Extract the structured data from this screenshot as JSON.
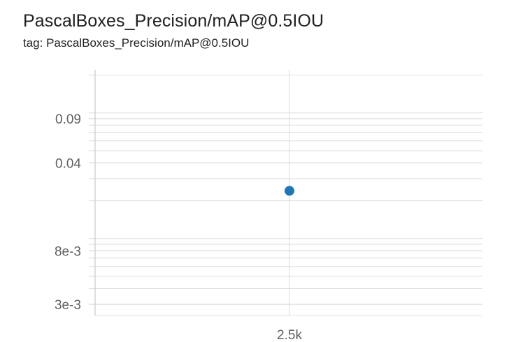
{
  "card": {
    "title": "PascalBoxes_Precision/mAP@0.5IOU",
    "tag": "tag: PascalBoxes_Precision/mAP@0.5IOU"
  },
  "chart_data": {
    "type": "scatter",
    "title": "PascalBoxes_Precision/mAP@0.5IOU",
    "xlabel": "",
    "ylabel": "",
    "y_scale": "log",
    "ylim": [
      0.0022,
      0.27
    ],
    "x_ticks": [
      {
        "value": 2500,
        "label": "2.5k"
      }
    ],
    "y_ticks": [
      {
        "value": 0.003,
        "label": "3e-3"
      },
      {
        "value": 0.008,
        "label": "8e-3"
      },
      {
        "value": 0.04,
        "label": "0.04"
      },
      {
        "value": 0.09,
        "label": "0.09"
      }
    ],
    "y_gridlines": [
      0.003,
      0.004,
      0.005,
      0.006,
      0.007,
      0.008,
      0.009,
      0.01,
      0.02,
      0.03,
      0.04,
      0.05,
      0.06,
      0.07,
      0.08,
      0.09,
      0.1,
      0.2
    ],
    "series": [
      {
        "points": [
          {
            "x": 2500,
            "y": 0.024
          }
        ],
        "color": "#1f77b4"
      }
    ],
    "grid": true,
    "legend": "none"
  }
}
